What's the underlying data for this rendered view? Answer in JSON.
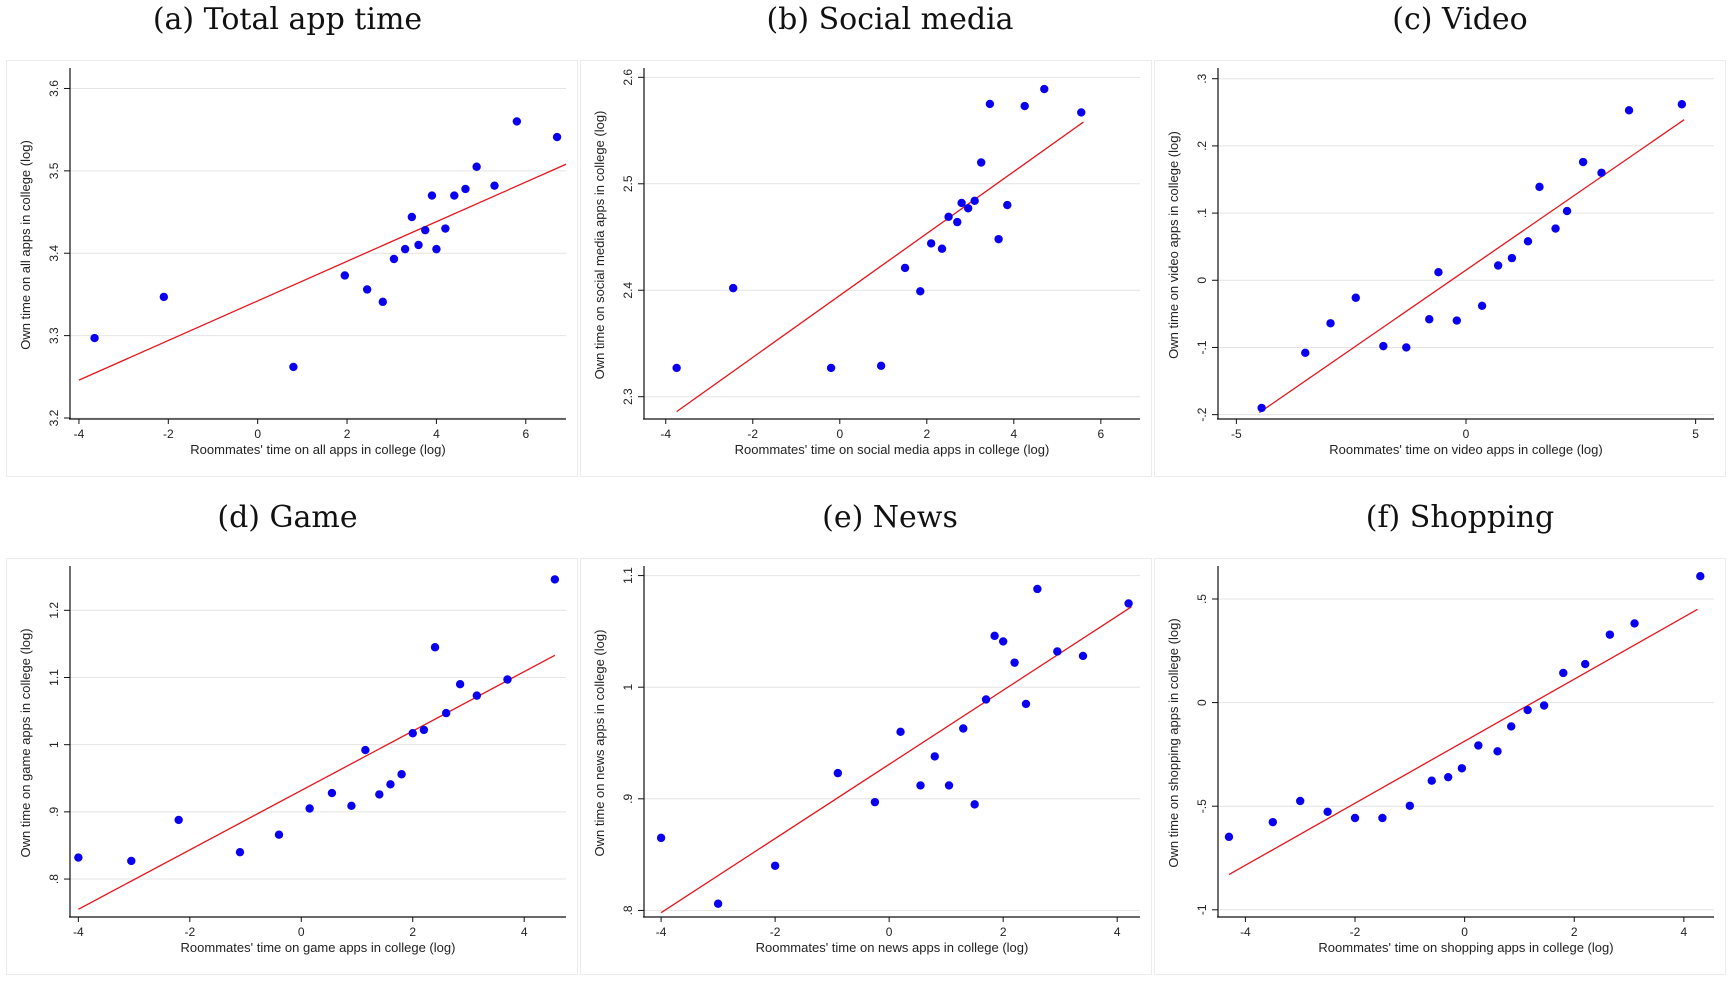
{
  "colors": {
    "point": "#0a00f0",
    "fit_line": "#e8141c",
    "axis": "#111111",
    "grid": "#e4e4e4"
  },
  "chart_data": [
    {
      "type": "scatter",
      "title": "(a) Total app time",
      "xlabel": "Roommates' time on all apps in college (log)",
      "ylabel": "Own time on all apps in college (log)",
      "xlim": [
        -4.2,
        6.9
      ],
      "ylim": [
        3.2,
        3.62
      ],
      "xticks": [
        -4,
        -2,
        0,
        2,
        4,
        6
      ],
      "xtick_labels": [
        "-4",
        "-2",
        "0",
        "2",
        "4",
        "6"
      ],
      "yticks": [
        3.2,
        3.3,
        3.4,
        3.5,
        3.6
      ],
      "ytick_labels": [
        "3.2",
        "3.3",
        "3.4",
        "3.5",
        "3.6"
      ],
      "grid": true,
      "x": [
        -3.65,
        -2.1,
        0.8,
        1.95,
        2.45,
        2.8,
        3.05,
        3.3,
        3.45,
        3.6,
        3.75,
        3.9,
        4.0,
        4.2,
        4.4,
        4.65,
        4.9,
        5.3,
        5.8,
        6.7
      ],
      "y": [
        3.297,
        3.347,
        3.262,
        3.373,
        3.356,
        3.341,
        3.393,
        3.405,
        3.444,
        3.41,
        3.428,
        3.47,
        3.405,
        3.43,
        3.47,
        3.478,
        3.505,
        3.482,
        3.56,
        3.541
      ],
      "fit_line": {
        "x": [
          -4.0,
          6.9
        ],
        "y": [
          3.246,
          3.508
        ]
      }
    },
    {
      "type": "scatter",
      "title": "(b) Social media",
      "xlabel": "Roommates' time on social media apps in college (log)",
      "ylabel": "Own time on social media apps in college (log)",
      "xlim": [
        -4.5,
        6.9
      ],
      "ylim": [
        2.28,
        2.605
      ],
      "xticks": [
        -4,
        -2,
        0,
        2,
        4,
        6
      ],
      "xtick_labels": [
        "-4",
        "-2",
        "0",
        "2",
        "4",
        "6"
      ],
      "yticks": [
        2.3,
        2.4,
        2.5,
        2.6
      ],
      "ytick_labels": [
        "2.3",
        "2.4",
        "2.5",
        "2.6"
      ],
      "grid": true,
      "x": [
        -3.75,
        -2.45,
        -0.2,
        0.95,
        1.5,
        1.85,
        2.1,
        2.35,
        2.5,
        2.7,
        2.8,
        2.95,
        3.1,
        3.25,
        3.45,
        3.65,
        3.85,
        4.25,
        4.7,
        5.55
      ],
      "y": [
        2.327,
        2.402,
        2.327,
        2.329,
        2.421,
        2.399,
        2.444,
        2.439,
        2.469,
        2.464,
        2.482,
        2.477,
        2.484,
        2.52,
        2.575,
        2.448,
        2.48,
        2.573,
        2.589,
        2.567
      ],
      "fit_line": {
        "x": [
          -3.75,
          5.6
        ],
        "y": [
          2.286,
          2.558
        ]
      }
    },
    {
      "type": "scatter",
      "title": "(c) Video",
      "xlabel": "Roommates' time on video apps in college (log)",
      "ylabel": "Own time on video apps in college (log)",
      "xlim": [
        -5.4,
        5.4
      ],
      "ylim": [
        -0.205,
        0.31
      ],
      "xticks": [
        -5,
        0,
        5
      ],
      "xtick_labels": [
        "-5",
        "0",
        "5"
      ],
      "yticks": [
        -0.2,
        -0.1,
        0,
        0.1,
        0.2,
        0.3
      ],
      "ytick_labels": [
        "-.2",
        "-.1",
        "0",
        ".1",
        ".2",
        ".3"
      ],
      "grid": true,
      "x": [
        -4.45,
        -3.5,
        -2.95,
        -2.4,
        -1.8,
        -1.3,
        -0.8,
        -0.6,
        -0.2,
        0.35,
        0.7,
        1.0,
        1.35,
        1.6,
        1.95,
        2.2,
        2.55,
        2.95,
        3.55,
        4.7
      ],
      "y": [
        -0.19,
        -0.108,
        -0.064,
        -0.026,
        -0.098,
        -0.1,
        -0.058,
        0.012,
        -0.06,
        -0.038,
        0.022,
        0.033,
        0.058,
        0.139,
        0.077,
        0.103,
        0.176,
        0.16,
        0.253,
        0.262
      ],
      "fit_line": {
        "x": [
          -4.5,
          4.75
        ],
        "y": [
          -0.197,
          0.239
        ]
      }
    },
    {
      "type": "scatter",
      "title": "(d) Game",
      "xlabel": "Roommates' time on game apps in college (log)",
      "ylabel": "Own time on game apps in college (log)",
      "xlim": [
        -4.15,
        4.75
      ],
      "ylim": [
        0.745,
        1.26
      ],
      "xticks": [
        -4,
        -2,
        0,
        2,
        4
      ],
      "xtick_labels": [
        "-4",
        "-2",
        "0",
        "2",
        "4"
      ],
      "yticks": [
        0.8,
        0.9,
        1.0,
        1.1,
        1.2
      ],
      "ytick_labels": [
        ".8",
        ".9",
        "1",
        "1.1",
        "1.2"
      ],
      "grid": true,
      "x": [
        -4.0,
        -3.05,
        -2.2,
        -1.1,
        -0.4,
        0.15,
        0.55,
        0.9,
        1.15,
        1.4,
        1.6,
        1.8,
        2.0,
        2.2,
        2.4,
        2.6,
        2.85,
        3.15,
        3.7,
        4.55
      ],
      "y": [
        0.832,
        0.827,
        0.888,
        0.84,
        0.866,
        0.905,
        0.928,
        0.909,
        0.992,
        0.926,
        0.941,
        0.956,
        1.017,
        1.022,
        1.145,
        1.047,
        1.09,
        1.073,
        1.097,
        1.246
      ],
      "fit_line": {
        "x": [
          -4.0,
          4.55
        ],
        "y": [
          0.755,
          1.133
        ]
      }
    },
    {
      "type": "scatter",
      "title": "(e) News",
      "xlabel": "Roommates' time on news apps in college (log)",
      "ylabel": "Own time on news apps in college (log)",
      "xlim": [
        -4.3,
        4.4
      ],
      "ylim": [
        0.795,
        1.105
      ],
      "xticks": [
        -4,
        -2,
        0,
        2,
        4
      ],
      "xtick_labels": [
        "-4",
        "-2",
        "0",
        "2",
        "4"
      ],
      "yticks": [
        0.8,
        0.9,
        1.0,
        1.1
      ],
      "ytick_labels": [
        ".8",
        ".9",
        "1",
        "1.1"
      ],
      "grid": true,
      "x": [
        -4.0,
        -3.0,
        -2.0,
        -0.9,
        -0.25,
        0.2,
        0.55,
        0.8,
        1.05,
        1.3,
        1.5,
        1.7,
        1.85,
        2.0,
        2.2,
        2.4,
        2.6,
        2.95,
        3.4,
        4.2
      ],
      "y": [
        0.865,
        0.806,
        0.84,
        0.923,
        0.897,
        0.96,
        0.912,
        0.938,
        0.912,
        0.963,
        0.895,
        0.989,
        1.046,
        1.041,
        1.022,
        0.985,
        1.088,
        1.032,
        1.028,
        1.075
      ],
      "fit_line": {
        "x": [
          -4.0,
          4.25
        ],
        "y": [
          0.798,
          1.072
        ]
      }
    },
    {
      "type": "scatter",
      "title": "(f) Shopping",
      "xlabel": "Roommates' time on shopping apps in college (log)",
      "ylabel": "Own time on shopping apps in college (log)",
      "xlim": [
        -4.5,
        4.55
      ],
      "ylim": [
        -1.03,
        0.64
      ],
      "xticks": [
        -4,
        -2,
        0,
        2,
        4
      ],
      "xtick_labels": [
        "-4",
        "-2",
        "0",
        "2",
        "4"
      ],
      "yticks": [
        -1,
        -0.5,
        0,
        0.5
      ],
      "ytick_labels": [
        "-1",
        "-.5",
        "0",
        ".5"
      ],
      "grid": true,
      "x": [
        -4.3,
        -3.5,
        -3.0,
        -2.5,
        -2.0,
        -1.5,
        -1.0,
        -0.6,
        -0.3,
        -0.05,
        0.25,
        0.6,
        0.85,
        1.15,
        1.45,
        1.8,
        2.2,
        2.65,
        3.1,
        4.3
      ],
      "y": [
        -0.648,
        -0.577,
        -0.475,
        -0.527,
        -0.557,
        -0.557,
        -0.498,
        -0.377,
        -0.36,
        -0.317,
        -0.207,
        -0.235,
        -0.115,
        -0.036,
        -0.014,
        0.143,
        0.186,
        0.328,
        0.382,
        0.61
      ],
      "fit_line": {
        "x": [
          -4.3,
          4.25
        ],
        "y": [
          -0.83,
          0.45
        ]
      }
    }
  ]
}
